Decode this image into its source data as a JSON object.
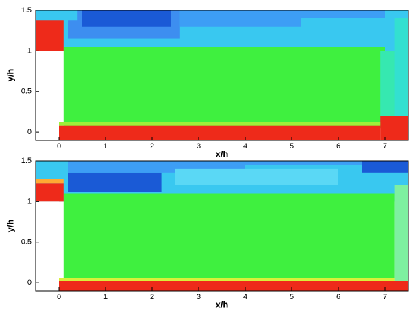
{
  "chart_data": [
    {
      "type": "contour",
      "xlabel": "x/h",
      "ylabel": "y/h",
      "xlim": [
        -0.5,
        7.5
      ],
      "ylim": [
        -0.1,
        1.5
      ],
      "xticks": [
        0,
        1,
        2,
        3,
        4,
        5,
        6,
        7
      ],
      "yticks": [
        0,
        0.5,
        1,
        1.5
      ]
    },
    {
      "type": "contour",
      "xlabel": "x/h",
      "ylabel": "y/h",
      "xlim": [
        -0.5,
        7.5
      ],
      "ylim": [
        -0.1,
        1.5
      ],
      "xticks": [
        0,
        1,
        2,
        3,
        4,
        5,
        6,
        7
      ],
      "yticks": [
        0,
        0.5,
        1,
        1.5
      ]
    }
  ]
}
